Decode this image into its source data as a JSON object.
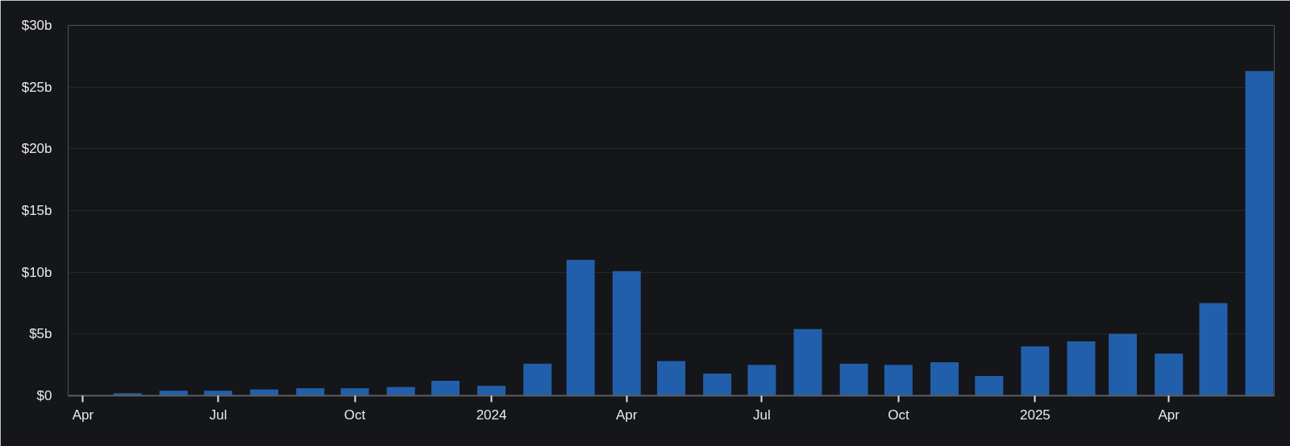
{
  "chart_data": {
    "type": "bar",
    "x": [
      "2023-04",
      "2023-05",
      "2023-06",
      "2023-07",
      "2023-08",
      "2023-09",
      "2023-10",
      "2023-11",
      "2023-12",
      "2024-01",
      "2024-02",
      "2024-03",
      "2024-04",
      "2024-05",
      "2024-06",
      "2024-07",
      "2024-08",
      "2024-09",
      "2024-10",
      "2024-11",
      "2024-12",
      "2025-01",
      "2025-02",
      "2025-03",
      "2025-04",
      "2025-05",
      "2025-06"
    ],
    "values": [
      0.03,
      0.2,
      0.4,
      0.4,
      0.5,
      0.6,
      0.6,
      0.7,
      1.2,
      0.8,
      2.6,
      11.0,
      10.1,
      2.8,
      1.8,
      2.5,
      5.4,
      2.6,
      2.5,
      2.7,
      1.6,
      4.0,
      4.4,
      5.0,
      3.4,
      7.5,
      26.3
    ],
    "color": "#225fab",
    "xlim": [
      "2023-03-22",
      "2025-06-11"
    ],
    "xticks": [
      {
        "value": "2023-04",
        "label": "Apr"
      },
      {
        "value": "2023-07",
        "label": "Jul"
      },
      {
        "value": "2023-10",
        "label": "Oct"
      },
      {
        "value": "2024-01",
        "label": "2024"
      },
      {
        "value": "2024-04",
        "label": "Apr"
      },
      {
        "value": "2024-07",
        "label": "Jul"
      },
      {
        "value": "2024-10",
        "label": "Oct"
      },
      {
        "value": "2025-01",
        "label": "2025"
      },
      {
        "value": "2025-04",
        "label": "Apr"
      }
    ],
    "ylim": [
      0,
      30
    ],
    "yticks": [
      {
        "value": 0,
        "label": "$0"
      },
      {
        "value": 5,
        "label": "$5b"
      },
      {
        "value": 10,
        "label": "$10b"
      },
      {
        "value": 15,
        "label": "$15b"
      },
      {
        "value": 20,
        "label": "$20b"
      },
      {
        "value": 25,
        "label": "$25b"
      },
      {
        "value": 30,
        "label": "$30b"
      }
    ],
    "grid": "y"
  }
}
